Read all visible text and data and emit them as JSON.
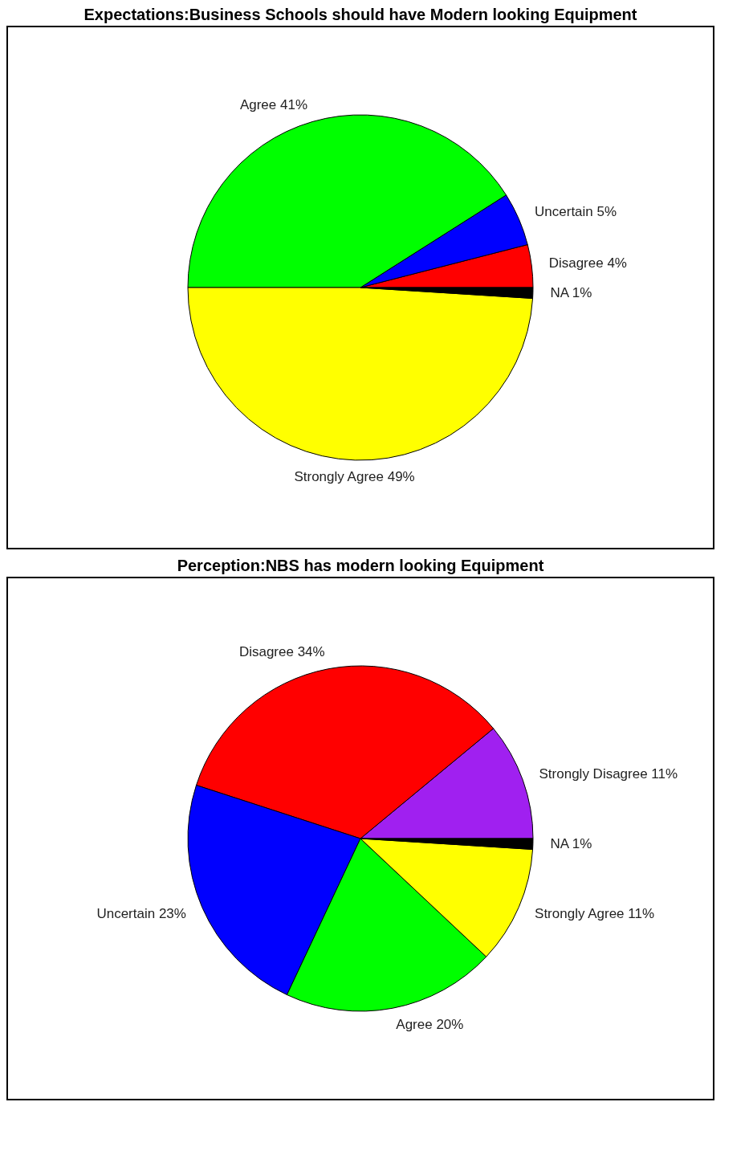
{
  "chart_data": [
    {
      "type": "pie",
      "title": "Expectations:Business Schools should have Modern looking Equipment",
      "categories": [
        "Disagree 4%",
        "Uncertain 5%",
        "Agree 41%",
        "Strongly Agree 49%",
        "NA 1%"
      ],
      "values": [
        4,
        5,
        41,
        49,
        1
      ],
      "colors": [
        "#ff0000",
        "#0000ff",
        "#00ff00",
        "#ffff00",
        "#000000"
      ]
    },
    {
      "type": "pie",
      "title": "Perception:NBS has modern looking Equipment",
      "categories": [
        "Strongly Disagree 11%",
        "Disagree 34%",
        "Uncertain 23%",
        "Agree 20%",
        "Strongly Agree 11%",
        "NA 1%"
      ],
      "values": [
        11,
        34,
        23,
        20,
        11,
        1
      ],
      "colors": [
        "#a020f0",
        "#ff0000",
        "#0000ff",
        "#00ff00",
        "#ffff00",
        "#000000"
      ]
    }
  ]
}
